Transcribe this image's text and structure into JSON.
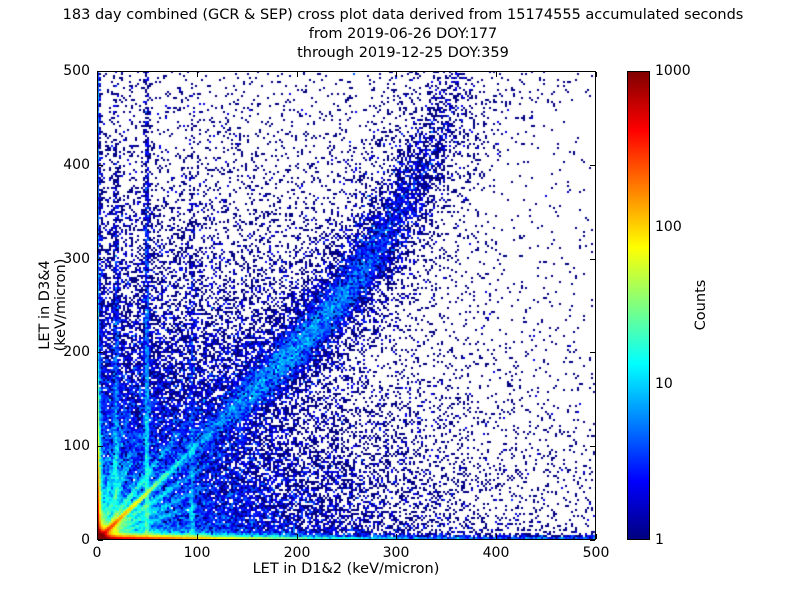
{
  "figure": {
    "title_lines": [
      "183 day combined (GCR & SEP) cross plot data derived from 15174555 accumulated seconds",
      "from 2019-06-26 DOY:177",
      "through 2019-12-25 DOY:359"
    ],
    "background": "#ffffff",
    "text_color": "#000000"
  },
  "axes": {
    "xlabel": "LET in D1&2 (keV/micron)",
    "ylabel": "LET in D3&4 (keV/micron)",
    "xlim": [
      0,
      500
    ],
    "ylim": [
      0,
      500
    ],
    "xticks": [
      0,
      100,
      200,
      300,
      400,
      500
    ],
    "yticks": [
      0,
      100,
      200,
      300,
      400,
      500
    ],
    "tick_direction": "in",
    "ticks_all_sides": true,
    "frame_color": "#000000"
  },
  "colorbar": {
    "label": "Counts",
    "scale": "log",
    "vmin": 1,
    "vmax": 1000,
    "ticks": [
      1,
      10,
      100,
      1000
    ],
    "tick_labels": [
      "1",
      "10",
      "100",
      "1000"
    ],
    "colormap": "jet",
    "gradient_stops": [
      [
        "#000080",
        0
      ],
      [
        "#0000ff",
        12.5
      ],
      [
        "#00ffff",
        37.5
      ],
      [
        "#ffff00",
        62.5
      ],
      [
        "#ff0000",
        87.5
      ],
      [
        "#800000",
        100
      ]
    ]
  },
  "chart_data": {
    "type": "heatmap",
    "title": "183 day combined (GCR & SEP) cross plot data derived from 15174555 accumulated seconds from 2019-06-26 DOY:177 through 2019-12-25 DOY:359",
    "xlabel": "LET in D1&2 (keV/micron)",
    "ylabel": "LET in D3&4 (keV/micron)",
    "xlim": [
      0,
      500
    ],
    "ylim": [
      0,
      500
    ],
    "grid": false,
    "legend": "colorbar right, Counts, log scale 1-1000, jet colormap, zero bins white, single counts dark navy",
    "bin_size_kev": 2,
    "features": [
      "extremely hot (red, >1000 counts) core at origin within ~10 keV/micron of (0,0)",
      "hot horizontal band along y=0: red to x~100, fading yellow/green/cyan to blue by x~300, sparse navy to x=500",
      "hot vertical band along x=0: red/orange to y~80, fading to blue by y~250",
      "bright diagonal streak y=x from origin, red/orange near 0 fading to cyan by r~80",
      "fainter fan of straight streaks from origin with slopes ~0.36, 0.53, 0.73, 1.38, 2.6, 4.5",
      "vertical streaks at x~19, x~50 (strongest) and x~95 extending to top",
      "curved correlation band: follows y~x up to ~(250,260) then bends steeply up, reaching (~350,500); densest near (200-280, 210-330) with diffuse halo",
      "sparse uniform navy speckle over remainder, denser in lower-left wedge"
    ],
    "density_model": {
      "seed": 42,
      "total_points_approx": 197000,
      "components": [
        {
          "type": "exp2d",
          "name": "origin-core",
          "n": 50000,
          "sx": 3.0,
          "sy": 3.0
        },
        {
          "type": "exp2d",
          "name": "bottom-band",
          "n": 45000,
          "sx": 55,
          "sy": 1.8
        },
        {
          "type": "exp2d",
          "name": "left-band",
          "n": 20000,
          "sx": 1.2,
          "sy": 40
        },
        {
          "type": "exp2d",
          "name": "lower-left-cloud",
          "n": 20000,
          "sx": 100,
          "sy": 100
        },
        {
          "type": "uniform_x_exp_y",
          "name": "bottom-tail",
          "n": 2500,
          "sy": 1.8
        },
        {
          "type": "uniform_y_exp_x",
          "name": "left-tail",
          "n": 1200,
          "sx": 1.2
        },
        {
          "type": "ray",
          "name": "diagonal-main",
          "n": 12000,
          "slope": 1.0,
          "scale": 30,
          "sigma": 1.3,
          "maxr": 160
        },
        {
          "type": "ray",
          "name": "fan-1p38",
          "n": 2600,
          "slope": 1.38,
          "scale": 42,
          "sigma": 1.7,
          "maxr": 220
        },
        {
          "type": "ray",
          "name": "fan-0p73",
          "n": 2600,
          "slope": 0.73,
          "scale": 42,
          "sigma": 1.7,
          "maxr": 220
        },
        {
          "type": "ray",
          "name": "fan-0p53",
          "n": 1800,
          "slope": 0.53,
          "scale": 40,
          "sigma": 1.7,
          "maxr": 200
        },
        {
          "type": "ray",
          "name": "fan-2p6",
          "n": 1500,
          "slope": 2.6,
          "scale": 45,
          "sigma": 1.8,
          "maxr": 260
        },
        {
          "type": "ray",
          "name": "fan-4p5",
          "n": 1200,
          "slope": 4.5,
          "scale": 50,
          "sigma": 1.8,
          "maxr": 300
        },
        {
          "type": "ray",
          "name": "fan-0p36",
          "n": 1000,
          "slope": 0.36,
          "scale": 45,
          "sigma": 1.6,
          "maxr": 200
        },
        {
          "type": "vline",
          "name": "streak-x19",
          "n": 1600,
          "x0": 19,
          "sy": 130,
          "sigma": 1.4
        },
        {
          "type": "vline",
          "name": "streak-x50",
          "n": 2600,
          "x0": 50,
          "sy": 170,
          "sigma": 1.5
        },
        {
          "type": "vline",
          "name": "streak-x95",
          "n": 800,
          "x0": 95,
          "sy": 120,
          "sigma": 1.6
        },
        {
          "type": "curve",
          "name": "correlation-band",
          "n": 9000,
          "ax": 360,
          "cub": 140,
          "pow": 6,
          "s_mean": 0.6,
          "s_sd": 0.22,
          "sigma0": 4,
          "sigma1": 10
        },
        {
          "type": "curve",
          "name": "correlation-halo",
          "n": 4000,
          "ax": 360,
          "cub": 140,
          "pow": 6,
          "s_mean": 0.65,
          "s_sd": 0.22,
          "sigma0": 12,
          "sigma1": 26
        },
        {
          "type": "wedge_above",
          "name": "above-diagonal-cloud",
          "n": 7000,
          "sx": 140,
          "soff": 130
        },
        {
          "type": "wedge_below",
          "name": "below-diagonal-cloud",
          "n": 5000,
          "sy": 90,
          "soff": 160
        },
        {
          "type": "uniform",
          "name": "background-speckle",
          "n": 900
        }
      ]
    }
  }
}
